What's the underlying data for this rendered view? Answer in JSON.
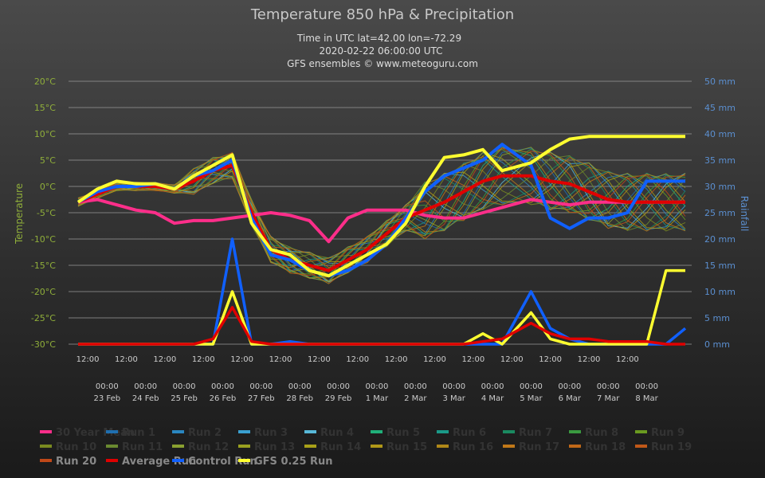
{
  "colors": {
    "background": "#333333",
    "grid": "#9a9a9a",
    "temperature_axis": "#8fae3a",
    "rainfall_axis": "#5b8fd0",
    "mean": "#ff2e8a",
    "average": "#e00000",
    "control": "#1060ff",
    "gfs": "#ffff30"
  },
  "chart_data": {
    "type": "line",
    "title": "Temperature 850 hPa & Precipitation",
    "subtitle_lines": [
      "Time in UTC lat=42.00 lon=-72.29",
      "2020-02-22 06:00:00 UTC",
      "GFS ensembles © www.meteoguru.com"
    ],
    "ylabel": "Temperature",
    "y2label": "Rainfall",
    "ylim": [
      -30,
      20
    ],
    "y2lim": [
      0,
      50
    ],
    "yticks": [
      "20°C",
      "15°C",
      "10°C",
      "5°C",
      "0°C",
      "-5°C",
      "-10°C",
      "-15°C",
      "-20°C",
      "-25°C",
      "-30°C"
    ],
    "y2ticks": [
      "50 mm",
      "45 mm",
      "40 mm",
      "35 mm",
      "30 mm",
      "25 mm",
      "20 mm",
      "15 mm",
      "10 mm",
      "5 mm",
      "0 mm"
    ],
    "x_noon_labels": [
      "12:00",
      "12:00",
      "12:00",
      "12:00",
      "12:00",
      "12:00",
      "12:00",
      "12:00",
      "12:00",
      "12:00",
      "12:00",
      "12:00",
      "12:00",
      "12:00",
      "12:00"
    ],
    "x_day_times": [
      "00:00",
      "00:00",
      "00:00",
      "00:00",
      "00:00",
      "00:00",
      "00:00",
      "00:00",
      "00:00",
      "00:00",
      "00:00",
      "00:00",
      "00:00",
      "00:00",
      "00:00"
    ],
    "x_day_labels": [
      "23 Feb",
      "24 Feb",
      "25 Feb",
      "26 Feb",
      "27 Feb",
      "28 Feb",
      "29 Feb",
      "1 Mar",
      "2 Mar",
      "3 Mar",
      "4 Mar",
      "5 Mar",
      "6 Mar",
      "7 Mar",
      "8 Mar"
    ],
    "x_days_from": "2020-02-22",
    "grid": true,
    "legend_position": "bottom",
    "legend": [
      {
        "name": "30 Year Mean",
        "color": "#ff2e8a"
      },
      {
        "name": "Run 1",
        "color": "#1f6fb0"
      },
      {
        "name": "Run 2",
        "color": "#2a86c0"
      },
      {
        "name": "Run 3",
        "color": "#3aa0d0"
      },
      {
        "name": "Run 4",
        "color": "#58b8d8"
      },
      {
        "name": "Run 5",
        "color": "#20b07a"
      },
      {
        "name": "Run 6",
        "color": "#1a9a88"
      },
      {
        "name": "Run 7",
        "color": "#1a8a60"
      },
      {
        "name": "Run 8",
        "color": "#3a9a40"
      },
      {
        "name": "Run 9",
        "color": "#6a9a20"
      },
      {
        "name": "Run 10",
        "color": "#7a8a20"
      },
      {
        "name": "Run 11",
        "color": "#6a8a30"
      },
      {
        "name": "Run 12",
        "color": "#8aa030"
      },
      {
        "name": "Run 13",
        "color": "#9aa020"
      },
      {
        "name": "Run 14",
        "color": "#a8a018"
      },
      {
        "name": "Run 15",
        "color": "#b09818"
      },
      {
        "name": "Run 16",
        "color": "#b08818"
      },
      {
        "name": "Run 17",
        "color": "#c07818"
      },
      {
        "name": "Run 18",
        "color": "#c06818"
      },
      {
        "name": "Run 19",
        "color": "#c05818"
      },
      {
        "name": "Run 20",
        "color": "#c04818"
      },
      {
        "name": "Average Run",
        "color": "#e00000"
      },
      {
        "name": "Control Run",
        "color": "#1060ff"
      },
      {
        "name": "GFS 0.25 Run",
        "color": "#ffff30"
      }
    ],
    "x_hours": [
      0,
      12,
      24,
      36,
      48,
      60,
      72,
      84,
      96,
      108,
      120,
      132,
      144,
      156,
      168,
      180,
      192,
      204,
      216,
      228,
      240,
      252,
      264,
      282,
      294,
      306,
      318,
      330,
      342,
      354,
      366,
      378
    ],
    "temperature_series": [
      {
        "name": "30 Year Mean",
        "values": [
          -3,
          -2.5,
          -3.5,
          -4.5,
          -5,
          -7,
          -6.5,
          -6.5,
          -6,
          -5.5,
          -5,
          -5.5,
          -6.5,
          -10.5,
          -6,
          -4.5,
          -4.5,
          -4.5,
          -5.5,
          -6,
          -6,
          -5,
          -4,
          -2.5,
          -3,
          -3.5,
          -3,
          -3,
          -3,
          -3,
          -3,
          -3
        ]
      },
      {
        "name": "Average Run",
        "values": [
          -3,
          -1.5,
          0,
          0,
          0,
          -0.5,
          1,
          3,
          4,
          -5,
          -12,
          -14,
          -15,
          -16,
          -14,
          -12,
          -9,
          -6,
          -4.5,
          -3,
          -1,
          1,
          2,
          2,
          1,
          0.5,
          -1,
          -2.5,
          -3,
          -3,
          -3,
          -3
        ]
      },
      {
        "name": "Control Run",
        "values": [
          -3,
          -1,
          0,
          0,
          0.5,
          -0.5,
          2,
          3,
          5,
          -6,
          -13,
          -14,
          -16,
          -17,
          -16,
          -14,
          -11,
          -6,
          -1,
          2,
          3.5,
          5,
          8,
          4,
          -6,
          -8,
          -6,
          -6,
          -5,
          1,
          1,
          1
        ]
      },
      {
        "name": "GFS 0.25 Run",
        "values": [
          -3,
          -0.5,
          1,
          0.5,
          0.5,
          -0.5,
          2,
          4,
          6,
          -7,
          -12,
          -13,
          -16,
          -17,
          -15,
          -13,
          -11,
          -7,
          0,
          5.5,
          6,
          7,
          3,
          4.5,
          7,
          9,
          9.5,
          9.5,
          9.5,
          9.5,
          9.5,
          9.5
        ]
      }
    ],
    "precipitation_series": [
      {
        "name": "Control Run",
        "values": [
          0,
          0,
          0,
          0,
          0,
          0,
          0,
          0,
          20,
          0,
          0,
          0.5,
          0,
          0,
          0,
          0,
          0,
          0,
          0,
          0,
          0,
          0,
          0,
          10,
          3,
          1,
          0,
          0,
          0,
          0,
          0,
          3
        ]
      },
      {
        "name": "GFS 0.25 Run",
        "values": [
          0,
          0,
          0,
          0,
          0,
          0,
          0,
          0,
          10,
          0,
          0,
          0,
          0,
          0,
          0,
          0,
          0,
          0,
          0,
          0,
          0,
          2,
          0,
          6,
          1,
          0,
          0,
          0,
          0,
          0,
          14,
          14
        ]
      },
      {
        "name": "Average Run",
        "values": [
          0,
          0,
          0,
          0,
          0,
          0,
          0,
          1,
          7,
          0.5,
          0,
          0,
          0,
          0,
          0,
          0,
          0,
          0,
          0,
          0,
          0,
          0.5,
          1,
          4,
          2,
          1,
          1,
          0.5,
          0.5,
          0.5,
          0,
          0
        ]
      }
    ]
  }
}
